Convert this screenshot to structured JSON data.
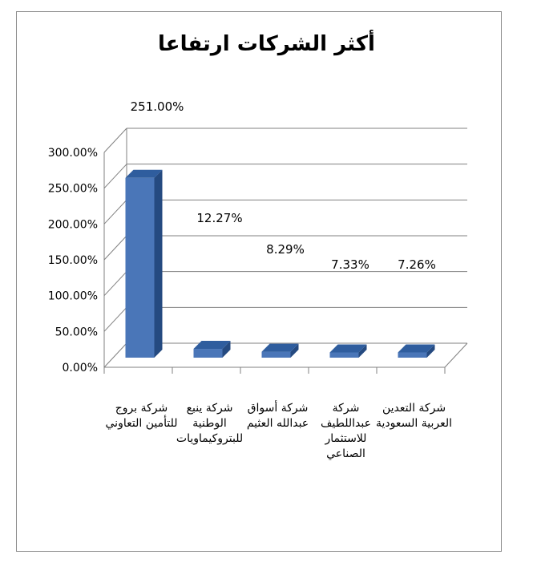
{
  "chart_data": {
    "type": "bar",
    "title": "أكثر الشركات ارتفاعا",
    "categories": [
      "شركة بروج للتأمين التعاوني",
      "شركة ينبع الوطنية للبتروكيماويات",
      "شركة أسواق عبدالله العثيم",
      "شركة عبداللطيف للاستثمار الصناعي",
      "شركة التعدين العربية السعودية"
    ],
    "values": [
      251.0,
      12.27,
      8.29,
      7.33,
      7.26
    ],
    "data_labels": [
      "251.00%",
      "12.27%",
      "8.29%",
      "7.33%",
      "7.26%"
    ],
    "y_ticks": [
      "0.00%",
      "50.00%",
      "100.00%",
      "150.00%",
      "200.00%",
      "250.00%",
      "300.00%"
    ],
    "ylim": [
      0,
      300
    ],
    "grid": true,
    "legend": "none",
    "style": "3d-bar",
    "colors": {
      "bar_front": "#4a76b8",
      "bar_top": "#2f5d9e",
      "bar_side": "#254a80",
      "grid": "#808080"
    }
  }
}
